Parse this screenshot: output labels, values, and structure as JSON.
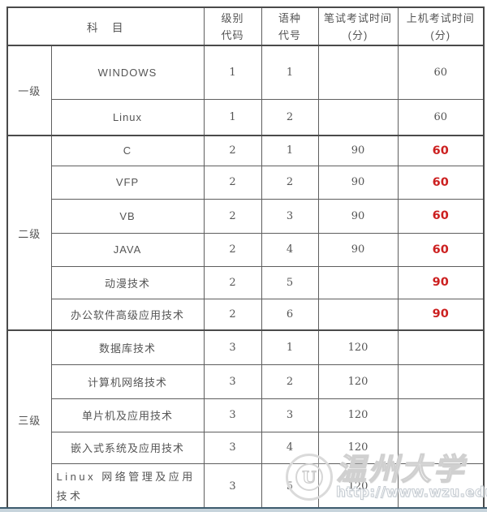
{
  "table": {
    "header": {
      "subject": "科　目",
      "level_code": [
        "级别",
        "代码"
      ],
      "lang_code": [
        "语种",
        "代号"
      ],
      "written": [
        "笔试考试时间",
        "(分)"
      ],
      "machine": [
        "上机考试时间",
        "(分)"
      ]
    },
    "groups": [
      {
        "level": "一级",
        "rows": [
          {
            "subject": "WINDOWS",
            "level_code": "1",
            "lang_code": "1",
            "written": "",
            "machine": "60",
            "machine_highlight": false
          },
          {
            "subject": "Linux",
            "level_code": "1",
            "lang_code": "2",
            "written": "",
            "machine": "60",
            "machine_highlight": false
          }
        ]
      },
      {
        "level": "二级",
        "rows": [
          {
            "subject": "C",
            "level_code": "2",
            "lang_code": "1",
            "written": "90",
            "machine": "60",
            "machine_highlight": true
          },
          {
            "subject": "VFP",
            "level_code": "2",
            "lang_code": "2",
            "written": "90",
            "machine": "60",
            "machine_highlight": true
          },
          {
            "subject": "VB",
            "level_code": "2",
            "lang_code": "3",
            "written": "90",
            "machine": "60",
            "machine_highlight": true
          },
          {
            "subject": "JAVA",
            "level_code": "2",
            "lang_code": "4",
            "written": "90",
            "machine": "60",
            "machine_highlight": true
          },
          {
            "subject": "动漫技术",
            "level_code": "2",
            "lang_code": "5",
            "written": "",
            "machine": "90",
            "machine_highlight": true
          },
          {
            "subject": "办公软件高级应用技术",
            "level_code": "2",
            "lang_code": "6",
            "written": "",
            "machine": "90",
            "machine_highlight": true
          }
        ]
      },
      {
        "level": "三级",
        "rows": [
          {
            "subject": "数据库技术",
            "level_code": "3",
            "lang_code": "1",
            "written": "120",
            "machine": "",
            "machine_highlight": false
          },
          {
            "subject": "计算机网络技术",
            "level_code": "3",
            "lang_code": "2",
            "written": "120",
            "machine": "",
            "machine_highlight": false
          },
          {
            "subject": "单片机及应用技术",
            "level_code": "3",
            "lang_code": "3",
            "written": "120",
            "machine": "",
            "machine_highlight": false
          },
          {
            "subject": "嵌入式系统及应用技术",
            "level_code": "3",
            "lang_code": "4",
            "written": "120",
            "machine": "",
            "machine_highlight": false
          },
          {
            "subject": "Linux 网络管理及应用技术",
            "level_code": "3",
            "lang_code": "5",
            "written": "120",
            "machine": "",
            "machine_highlight": false,
            "wrap": true
          }
        ]
      }
    ]
  },
  "watermark": {
    "logo_letter": "U",
    "site_name": "温州大学",
    "site_url": "http://www.wzu.edu.cn"
  },
  "colors": {
    "highlight_red": "#cc2020",
    "text_gray": "#555555",
    "border_gray": "#4a4a4a",
    "bottom_line": "#3d5b6e",
    "bottom_strip": "#c7d4dc"
  }
}
